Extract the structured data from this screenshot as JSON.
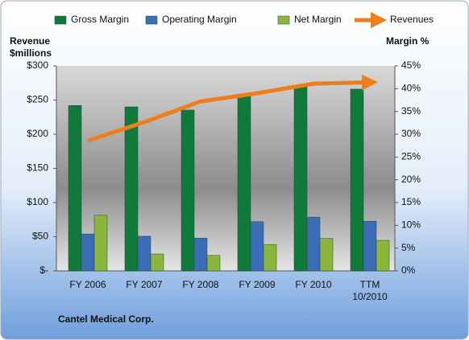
{
  "chart_data": {
    "type": "bar",
    "y_label": [
      "Revenue",
      "$millions"
    ],
    "y2_label": "Margin  %",
    "footer": "Cantel Medical Corp.",
    "categories": [
      "FY 2006",
      "FY 2007",
      "FY 2008",
      "FY 2009",
      "FY 2010",
      "TTM\n10/2010"
    ],
    "series": [
      {
        "name": "Gross Margin",
        "type": "bar",
        "axis": "y2",
        "color": "#0f7a3a",
        "values": [
          36.3,
          36.0,
          35.3,
          38.6,
          40.4,
          39.9
        ]
      },
      {
        "name": "Operating Margin",
        "type": "bar",
        "axis": "y2",
        "color": "#3a6db5",
        "values": [
          8.1,
          7.6,
          7.2,
          10.8,
          11.8,
          10.9
        ]
      },
      {
        "name": "Net Margin",
        "type": "bar",
        "axis": "y2",
        "color": "#8db53c",
        "values": [
          12.2,
          3.7,
          3.4,
          5.8,
          7.1,
          6.7
        ]
      },
      {
        "name": "Revenues",
        "type": "line",
        "axis": "y",
        "color": "#f07d1a",
        "values": [
          190.6,
          217.6,
          248,
          260,
          274,
          276
        ]
      }
    ],
    "ylim": [
      0,
      300
    ],
    "yticks": [
      {
        "value": 0,
        "label": "$-"
      },
      {
        "value": 50,
        "label": "$50"
      },
      {
        "value": 100,
        "label": "$100"
      },
      {
        "value": 150,
        "label": "$150"
      },
      {
        "value": 200,
        "label": "$200"
      },
      {
        "value": 250,
        "label": "$250"
      },
      {
        "value": 300,
        "label": "$300"
      }
    ],
    "y2lim": [
      0,
      45
    ],
    "y2ticks": [
      {
        "value": 0,
        "label": "0%"
      },
      {
        "value": 5,
        "label": "5%"
      },
      {
        "value": 10,
        "label": "10%"
      },
      {
        "value": 15,
        "label": "15%"
      },
      {
        "value": 20,
        "label": "20%"
      },
      {
        "value": 25,
        "label": "25%"
      },
      {
        "value": 30,
        "label": "30%"
      },
      {
        "value": 35,
        "label": "35%"
      },
      {
        "value": 40,
        "label": "40%"
      },
      {
        "value": 45,
        "label": "45%"
      }
    ]
  }
}
